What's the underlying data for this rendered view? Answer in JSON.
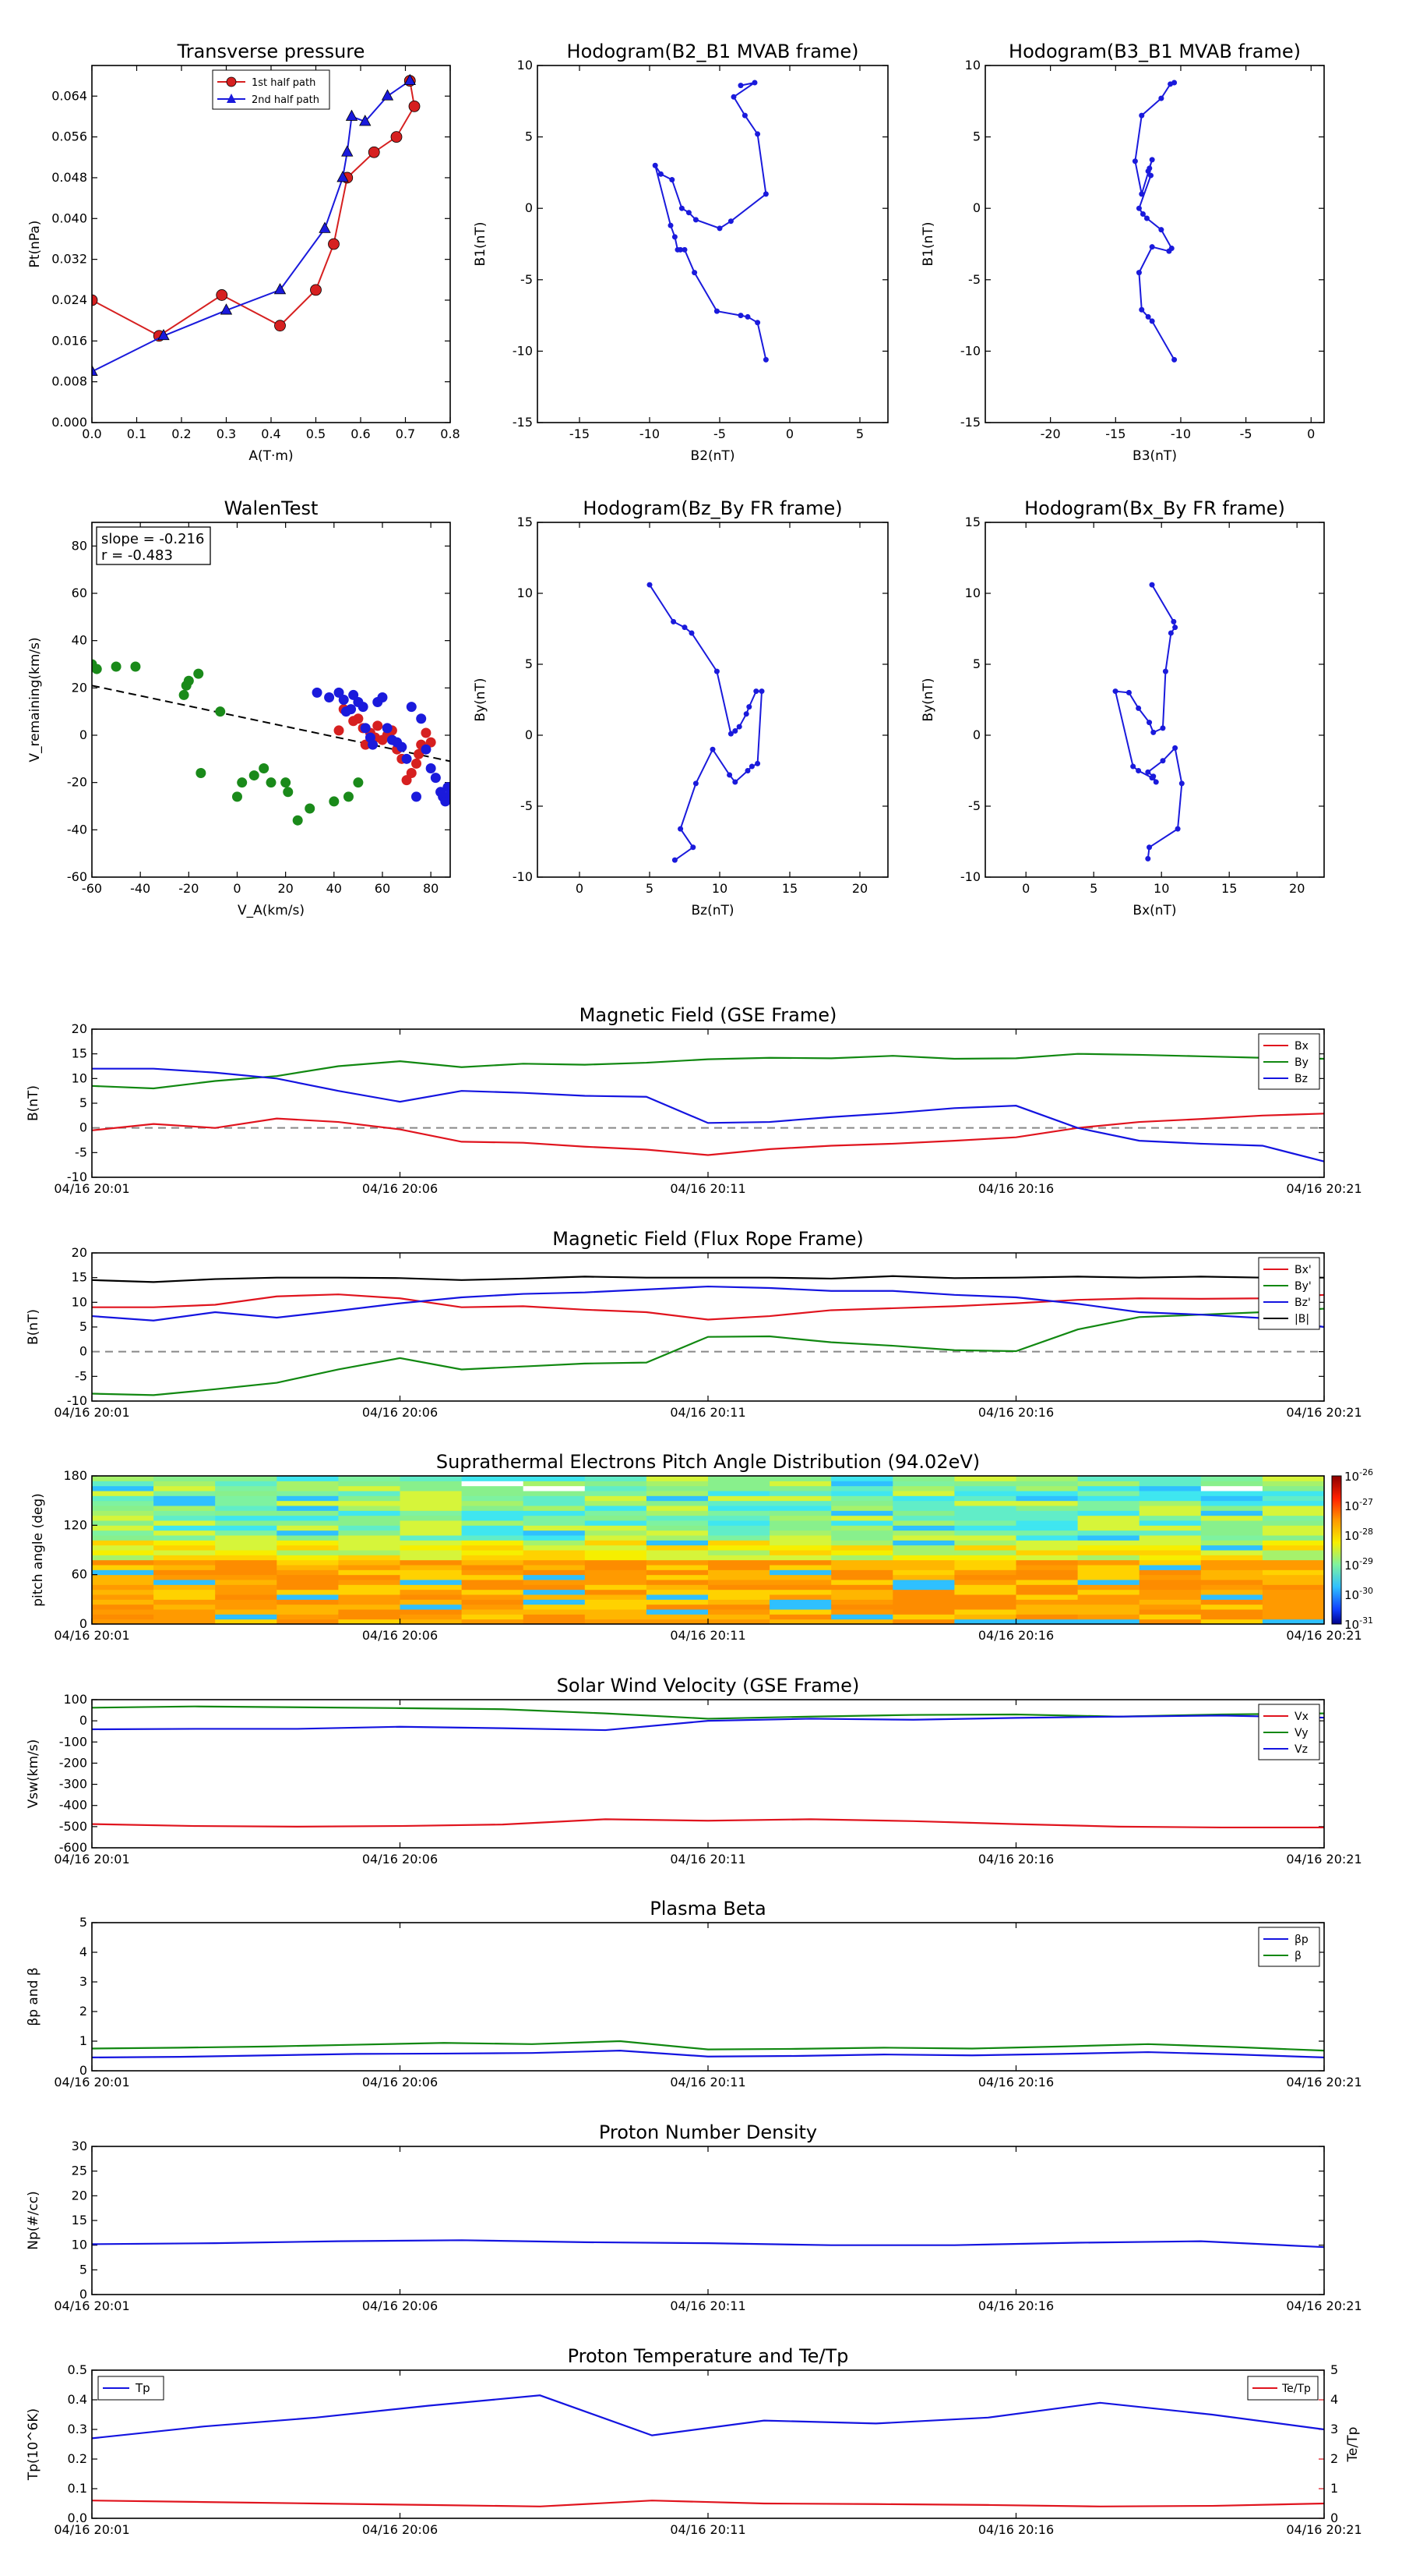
{
  "time_ticks": [
    "04/16 20:01",
    "04/16 20:06",
    "04/16 20:11",
    "04/16 20:16",
    "04/16 20:21"
  ],
  "chart_data": [
    {
      "id": "transverse",
      "type": "line",
      "title": "Transverse pressure",
      "xlabel": "A(T·m)",
      "ylabel": "Pt(nPa)",
      "xlim": [
        0,
        0.8
      ],
      "ylim": [
        0,
        0.07
      ],
      "xticks": [
        0.0,
        0.1,
        0.2,
        0.3,
        0.4,
        0.5,
        0.6,
        0.7,
        0.8
      ],
      "yticks": [
        0.0,
        0.008,
        0.016,
        0.024,
        0.032,
        0.04,
        0.048,
        0.056,
        0.064
      ],
      "legend": "top",
      "series": [
        {
          "name": "1st half path",
          "color": "#d62020",
          "marker": "circle",
          "x": [
            0.0,
            0.15,
            0.29,
            0.42,
            0.5,
            0.54,
            0.57,
            0.63,
            0.68,
            0.72,
            0.71
          ],
          "y": [
            0.024,
            0.017,
            0.025,
            0.019,
            0.026,
            0.035,
            0.048,
            0.053,
            0.056,
            0.062,
            0.067
          ]
        },
        {
          "name": "2nd half path",
          "color": "#1a1adc",
          "marker": "triangle",
          "x": [
            0.0,
            0.16,
            0.3,
            0.42,
            0.52,
            0.56,
            0.57,
            0.58,
            0.61,
            0.66,
            0.71
          ],
          "y": [
            0.01,
            0.017,
            0.022,
            0.026,
            0.038,
            0.048,
            0.053,
            0.06,
            0.059,
            0.064,
            0.067
          ]
        }
      ]
    },
    {
      "id": "hodo_b2b1",
      "type": "line",
      "title": "Hodogram(B2_B1 MVAB frame)",
      "xlabel": "B2(nT)",
      "ylabel": "B1(nT)",
      "xlim": [
        -18,
        7
      ],
      "ylim": [
        -15,
        10
      ],
      "xticks": [
        -15,
        -10,
        -5,
        0,
        5
      ],
      "yticks": [
        -15,
        -10,
        -5,
        0,
        5,
        10
      ],
      "series": [
        {
          "color": "#1a1adc",
          "x": [
            -3.5,
            -2.5,
            -4.0,
            -3.2,
            -2.3,
            -1.7,
            -4.2,
            -5.0,
            -6.7,
            -7.2,
            -7.7,
            -8.4,
            -9.2,
            -9.6,
            -8.5,
            -8.2,
            -8.0,
            -7.8,
            -7.5,
            -6.8,
            -5.2,
            -3.5,
            -3.0,
            -2.3,
            -1.7
          ],
          "y": [
            8.6,
            8.8,
            7.8,
            6.5,
            5.2,
            1.0,
            -0.9,
            -1.4,
            -0.8,
            -0.3,
            0.0,
            2.0,
            2.4,
            3.0,
            -1.2,
            -2.0,
            -2.9,
            -2.9,
            -2.9,
            -4.5,
            -7.2,
            -7.5,
            -7.6,
            -8.0,
            -10.6
          ]
        }
      ]
    },
    {
      "id": "hodo_b3b1",
      "type": "line",
      "title": "Hodogram(B3_B1 MVAB frame)",
      "xlabel": "B3(nT)",
      "ylabel": "B1(nT)",
      "xlim": [
        -25,
        1
      ],
      "ylim": [
        -15,
        10
      ],
      "xticks": [
        -20,
        -15,
        -10,
        -5,
        0
      ],
      "yticks": [
        -15,
        -10,
        -5,
        0,
        5,
        10
      ],
      "series": [
        {
          "color": "#1a1adc",
          "x": [
            -10.5,
            -10.8,
            -11.5,
            -13.0,
            -13.5,
            -13.0,
            -12.4,
            -12.2,
            -12.5,
            -12.3,
            -13.2,
            -12.9,
            -12.6,
            -11.5,
            -10.7,
            -10.9,
            -12.2,
            -13.2,
            -13.0,
            -12.5,
            -12.2,
            -10.5
          ],
          "y": [
            8.8,
            8.7,
            7.7,
            6.5,
            3.3,
            1.0,
            2.8,
            3.4,
            2.6,
            2.3,
            0.0,
            -0.4,
            -0.7,
            -1.5,
            -2.8,
            -3.0,
            -2.7,
            -4.5,
            -7.1,
            -7.6,
            -7.9,
            -10.6
          ]
        }
      ]
    },
    {
      "id": "walen",
      "type": "scatter",
      "title": "WalenTest",
      "xlabel": "V_A(km/s)",
      "ylabel": "V_remaining(km/s)",
      "xlim": [
        -60,
        88
      ],
      "ylim": [
        -60,
        90
      ],
      "xticks": [
        -60,
        -40,
        -20,
        0,
        20,
        40,
        60,
        80
      ],
      "yticks": [
        -60,
        -40,
        -20,
        0,
        20,
        40,
        60,
        80
      ],
      "annotation": [
        "slope = -0.216",
        "r = -0.483"
      ],
      "fit": {
        "slope": -0.216,
        "x": [
          -60,
          88
        ],
        "y": [
          21,
          -11
        ]
      },
      "series": [
        {
          "color": "#1a8a1a",
          "x": [
            -60,
            -58,
            -50,
            -42,
            -22,
            -21,
            -20,
            -16,
            -15,
            -7,
            0,
            2,
            7,
            11,
            14,
            20,
            21,
            25,
            30,
            40,
            46,
            50
          ],
          "y": [
            30,
            28,
            29,
            29,
            17,
            21,
            23,
            26,
            -16,
            10,
            -26,
            -20,
            -17,
            -14,
            -20,
            -20,
            -24,
            -36,
            -31,
            -28,
            -26,
            -20
          ]
        },
        {
          "color": "#d62020",
          "x": [
            42,
            44,
            48,
            50,
            52,
            53,
            55,
            57,
            58,
            60,
            62,
            64,
            66,
            68,
            70,
            72,
            74,
            75,
            76,
            78,
            80
          ],
          "y": [
            2,
            11,
            6,
            7,
            3,
            -4,
            1,
            -1,
            4,
            -2,
            0,
            2,
            -6,
            -10,
            -19,
            -16,
            -12,
            -8,
            -4,
            1,
            -3
          ]
        },
        {
          "color": "#1a1adc",
          "x": [
            33,
            38,
            42,
            44,
            45,
            47,
            48,
            50,
            52,
            53,
            55,
            56,
            58,
            60,
            62,
            64,
            66,
            68,
            70,
            72,
            74,
            76,
            78,
            80,
            82,
            84,
            85,
            86,
            87,
            88
          ],
          "y": [
            18,
            16,
            18,
            15,
            10,
            11,
            17,
            14,
            12,
            3,
            -1,
            -4,
            14,
            16,
            3,
            -2,
            -3,
            -5,
            -10,
            12,
            -26,
            7,
            -6,
            -14,
            -18,
            -24,
            -26,
            -28,
            -22,
            -25
          ]
        }
      ]
    },
    {
      "id": "hodo_bzby",
      "type": "line",
      "title": "Hodogram(Bz_By FR frame)",
      "xlabel": "Bz(nT)",
      "ylabel": "By(nT)",
      "xlim": [
        -3,
        22
      ],
      "ylim": [
        -10,
        15
      ],
      "xticks": [
        0,
        5,
        10,
        15,
        20
      ],
      "yticks": [
        -10,
        -5,
        0,
        5,
        10,
        15
      ],
      "series": [
        {
          "color": "#1a1adc",
          "x": [
            5.0,
            6.7,
            7.5,
            8.0,
            9.8,
            10.8,
            11.1,
            11.4,
            11.9,
            12.1,
            12.6,
            13.0,
            12.7,
            12.3,
            12.0,
            11.1,
            10.7,
            9.5,
            8.3,
            7.2,
            8.1,
            6.8
          ],
          "y": [
            10.6,
            8.0,
            7.6,
            7.2,
            4.5,
            0.1,
            0.3,
            0.6,
            1.5,
            2.0,
            3.1,
            3.1,
            -2.0,
            -2.2,
            -2.5,
            -3.3,
            -2.8,
            -1.0,
            -3.4,
            -6.6,
            -7.9,
            -8.8
          ]
        }
      ]
    },
    {
      "id": "hodo_bxby",
      "type": "line",
      "title": "Hodogram(Bx_By FR frame)",
      "xlabel": "Bx(nT)",
      "ylabel": "By(nT)",
      "xlim": [
        -3,
        22
      ],
      "ylim": [
        -10,
        15
      ],
      "xticks": [
        0,
        5,
        10,
        15,
        20
      ],
      "yticks": [
        -10,
        -5,
        0,
        5,
        10,
        15
      ],
      "series": [
        {
          "color": "#1a1adc",
          "x": [
            9.3,
            10.9,
            11.0,
            10.7,
            10.3,
            10.1,
            9.4,
            9.1,
            8.3,
            7.6,
            6.6,
            7.9,
            8.3,
            9.3,
            9.6,
            9.4,
            9.0,
            10.1,
            11.0,
            11.5,
            11.2,
            9.1,
            9.0
          ],
          "y": [
            10.6,
            8.0,
            7.6,
            7.2,
            4.5,
            0.5,
            0.2,
            0.9,
            1.9,
            3.0,
            3.1,
            -2.2,
            -2.5,
            -3.0,
            -3.3,
            -2.9,
            -2.6,
            -1.8,
            -0.9,
            -3.4,
            -6.6,
            -7.9,
            -8.7
          ]
        }
      ]
    },
    {
      "id": "mag_gse",
      "type": "line",
      "title": "Magnetic Field (GSE Frame)",
      "ylabel": "B(nT)",
      "ylim": [
        -10,
        20
      ],
      "yticks": [
        -10,
        -5,
        0,
        5,
        10,
        15,
        20
      ],
      "zero_line": true,
      "legend": "top-right",
      "series": [
        {
          "name": "Bx",
          "color": "#e0141e",
          "y": [
            -0.5,
            0.8,
            0.0,
            1.9,
            1.2,
            -0.3,
            -2.8,
            -3.0,
            -3.8,
            -4.4,
            -5.5,
            -4.3,
            -3.6,
            -3.2,
            -2.6,
            -1.9,
            0.0,
            1.2,
            1.8,
            2.5,
            2.9
          ]
        },
        {
          "name": "By",
          "color": "#118811",
          "y": [
            8.5,
            8.0,
            9.5,
            10.5,
            12.5,
            13.5,
            12.3,
            13.0,
            12.8,
            13.2,
            13.9,
            14.2,
            14.1,
            14.6,
            14.0,
            14.1,
            15.0,
            14.8,
            14.5,
            14.2,
            14.0
          ]
        },
        {
          "name": "Bz",
          "color": "#1414e0",
          "y": [
            12.0,
            12.0,
            11.2,
            10.0,
            7.5,
            5.3,
            7.5,
            7.1,
            6.5,
            6.3,
            1.0,
            1.2,
            2.2,
            3.0,
            4.0,
            4.5,
            0.0,
            -2.6,
            -3.2,
            -3.6,
            -6.8
          ]
        }
      ]
    },
    {
      "id": "mag_fr",
      "type": "line",
      "title": "Magnetic Field (Flux Rope Frame)",
      "ylabel": "B(nT)",
      "ylim": [
        -10,
        20
      ],
      "yticks": [
        -10,
        -5,
        0,
        5,
        10,
        15,
        20
      ],
      "zero_line": true,
      "legend": "top-right",
      "series": [
        {
          "name": "Bx'",
          "color": "#e0141e",
          "y": [
            9.0,
            9.0,
            9.5,
            11.2,
            11.6,
            10.8,
            9.0,
            9.2,
            8.5,
            8.0,
            6.5,
            7.2,
            8.4,
            8.8,
            9.2,
            9.8,
            10.5,
            10.8,
            10.7,
            10.8,
            11.5
          ]
        },
        {
          "name": "By'",
          "color": "#118811",
          "y": [
            -8.5,
            -8.8,
            -7.6,
            -6.3,
            -3.6,
            -1.3,
            -3.6,
            -3.0,
            -2.4,
            -2.2,
            3.0,
            3.1,
            1.9,
            1.2,
            0.3,
            0.1,
            4.5,
            7.0,
            7.5,
            8.0,
            8.7
          ]
        },
        {
          "name": "Bz'",
          "color": "#1414e0",
          "y": [
            7.2,
            6.3,
            8.0,
            6.9,
            8.3,
            9.8,
            11.0,
            11.7,
            12.0,
            12.6,
            13.2,
            12.9,
            12.3,
            12.3,
            11.5,
            11.0,
            9.7,
            8.0,
            7.5,
            6.8,
            5.0
          ]
        },
        {
          "name": "|B|",
          "color": "#000000",
          "y": [
            14.5,
            14.1,
            14.7,
            15.0,
            15.0,
            14.9,
            14.5,
            14.8,
            15.2,
            15.0,
            15.0,
            15.0,
            14.8,
            15.3,
            14.9,
            15.0,
            15.2,
            15.0,
            15.2,
            15.0,
            15.0
          ]
        }
      ]
    },
    {
      "id": "pad",
      "type": "heatmap",
      "title": "Suprathermal Electrons Pitch Angle Distribution (94.02eV)",
      "ylabel": "pitch angle (deg)",
      "ylim": [
        0,
        180
      ],
      "yticks": [
        0,
        60,
        120,
        180
      ],
      "colorbar_ticks": [
        "10^-26",
        "10^-27",
        "10^-28",
        "10^-29",
        "10^-30",
        "10^-31"
      ]
    },
    {
      "id": "vsw",
      "type": "line",
      "title": "Solar Wind Velocity (GSE Frame)",
      "ylabel": "Vsw(km/s)",
      "ylim": [
        -600,
        100
      ],
      "yticks": [
        -600,
        -500,
        -400,
        -300,
        -200,
        -100,
        0,
        100
      ],
      "legend": "top-right",
      "series": [
        {
          "name": "Vx",
          "color": "#e0141e",
          "y": [
            -488,
            -497,
            -500,
            -497,
            -490,
            -465,
            -472,
            -465,
            -474,
            -488,
            -500,
            -504,
            -504
          ]
        },
        {
          "name": "Vy",
          "color": "#118811",
          "y": [
            62,
            68,
            64,
            60,
            55,
            35,
            10,
            20,
            28,
            30,
            20,
            30,
            35
          ]
        },
        {
          "name": "Vz",
          "color": "#1414e0",
          "y": [
            -40,
            -38,
            -38,
            -28,
            -35,
            -44,
            0,
            10,
            5,
            14,
            20,
            25,
            15
          ]
        }
      ]
    },
    {
      "id": "beta",
      "type": "line",
      "title": "Plasma Beta",
      "ylabel": "βp and β",
      "ylim": [
        0,
        5
      ],
      "yticks": [
        0,
        1,
        2,
        3,
        4,
        5
      ],
      "legend": "top-right",
      "series": [
        {
          "name": "βp",
          "color": "#1414e0",
          "y": [
            0.45,
            0.47,
            0.52,
            0.57,
            0.58,
            0.6,
            0.68,
            0.48,
            0.5,
            0.55,
            0.52,
            0.57,
            0.63,
            0.55,
            0.45
          ]
        },
        {
          "name": "β",
          "color": "#118811",
          "y": [
            0.75,
            0.78,
            0.82,
            0.88,
            0.94,
            0.9,
            1.0,
            0.72,
            0.74,
            0.78,
            0.75,
            0.82,
            0.9,
            0.8,
            0.68
          ]
        }
      ]
    },
    {
      "id": "density",
      "type": "line",
      "title": "Proton Number Density",
      "ylabel": "Np(#/cc)",
      "ylim": [
        0,
        30
      ],
      "yticks": [
        0,
        5,
        10,
        15,
        20,
        25,
        30
      ],
      "series": [
        {
          "name": "Np",
          "color": "#1414e0",
          "y": [
            10.2,
            10.4,
            10.8,
            11.0,
            10.6,
            10.4,
            10.0,
            10.0,
            10.5,
            10.8,
            9.6
          ]
        }
      ]
    },
    {
      "id": "temp",
      "type": "line",
      "title": "Proton Temperature and Te/Tp",
      "ylabel": "Tp(10^6K)",
      "ylabel_right": "Te/Tp",
      "ylim": [
        0,
        0.5
      ],
      "ylim_right": [
        0,
        5
      ],
      "yticks": [
        0.0,
        0.1,
        0.2,
        0.3,
        0.4,
        0.5
      ],
      "yticks_right": [
        0,
        1,
        2,
        3,
        4,
        5
      ],
      "legend": "top-left",
      "series": [
        {
          "name": "Tp",
          "color": "#1414e0",
          "axis": "left",
          "y": [
            0.27,
            0.31,
            0.34,
            0.38,
            0.415,
            0.28,
            0.33,
            0.32,
            0.34,
            0.39,
            0.35,
            0.3
          ]
        },
        {
          "name": "Te/Tp",
          "color": "#e0141e",
          "axis": "right",
          "y": [
            0.6,
            0.55,
            0.5,
            0.45,
            0.4,
            0.6,
            0.5,
            0.48,
            0.45,
            0.4,
            0.42,
            0.5
          ]
        }
      ]
    }
  ]
}
